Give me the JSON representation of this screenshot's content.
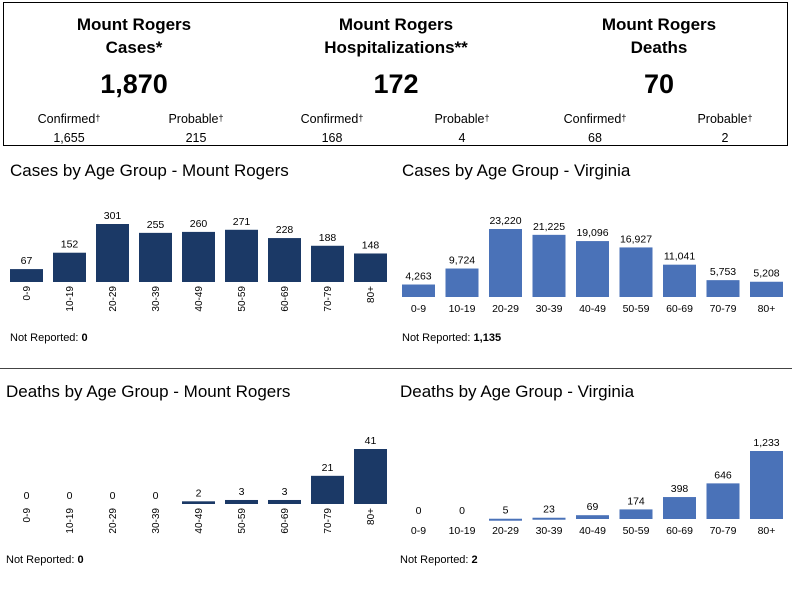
{
  "summary": {
    "cases": {
      "title1": "Mount Rogers",
      "title2": "Cases*",
      "total": "1,870",
      "confirmed_label": "Confirmed",
      "confirmed": "1,655",
      "probable_label": "Probable",
      "probable": "215"
    },
    "hosp": {
      "title1": "Mount Rogers",
      "title2": "Hospitalizations**",
      "total": "172",
      "confirmed_label": "Confirmed",
      "confirmed": "168",
      "probable_label": "Probable",
      "probable": "4"
    },
    "deaths": {
      "title1": "Mount Rogers",
      "title2": "Deaths",
      "total": "70",
      "confirmed_label": "Confirmed",
      "confirmed": "68",
      "probable_label": "Probable",
      "probable": "2"
    },
    "dagger": "†"
  },
  "not_reported_label": "Not Reported:",
  "colors": {
    "dark": "#1b3966",
    "light": "#4a72b8"
  },
  "chart_data": [
    {
      "id": "cases_mr",
      "type": "bar",
      "title": "Cases by Age Group - Mount Rogers",
      "categories": [
        "0-9",
        "10-19",
        "20-29",
        "30-39",
        "40-49",
        "50-59",
        "60-69",
        "70-79",
        "80+"
      ],
      "values": [
        67,
        152,
        301,
        255,
        260,
        271,
        228,
        188,
        148
      ],
      "labels": [
        "67",
        "152",
        "301",
        "255",
        "260",
        "271",
        "228",
        "188",
        "148"
      ],
      "tick_rotation": "vertical",
      "not_reported": "0"
    },
    {
      "id": "cases_va",
      "type": "bar",
      "title": "Cases by Age Group - Virginia",
      "categories": [
        "0-9",
        "10-19",
        "20-29",
        "30-39",
        "40-49",
        "50-59",
        "60-69",
        "70-79",
        "80+"
      ],
      "values": [
        4263,
        9724,
        23220,
        21225,
        19096,
        16927,
        11041,
        5753,
        5208
      ],
      "labels": [
        "4,263",
        "9,724",
        "23,220",
        "21,225",
        "19,096",
        "16,927",
        "11,041",
        "5,753",
        "5,208"
      ],
      "tick_rotation": "horizontal",
      "not_reported": "1,135"
    },
    {
      "id": "deaths_mr",
      "type": "bar",
      "title": "Deaths by Age Group - Mount Rogers",
      "categories": [
        "0-9",
        "10-19",
        "20-29",
        "30-39",
        "40-49",
        "50-59",
        "60-69",
        "70-79",
        "80+"
      ],
      "values": [
        0,
        0,
        0,
        0,
        2,
        3,
        3,
        21,
        41
      ],
      "labels": [
        "0",
        "0",
        "0",
        "0",
        "2",
        "3",
        "3",
        "21",
        "41"
      ],
      "tick_rotation": "vertical",
      "not_reported": "0"
    },
    {
      "id": "deaths_va",
      "type": "bar",
      "title": "Deaths by Age Group - Virginia",
      "categories": [
        "0-9",
        "10-19",
        "20-29",
        "30-39",
        "40-49",
        "50-59",
        "60-69",
        "70-79",
        "80+"
      ],
      "values": [
        0,
        0,
        5,
        23,
        69,
        174,
        398,
        646,
        1233
      ],
      "labels": [
        "0",
        "0",
        "5",
        "23",
        "69",
        "174",
        "398",
        "646",
        "1,233"
      ],
      "tick_rotation": "horizontal",
      "not_reported": "2"
    }
  ]
}
